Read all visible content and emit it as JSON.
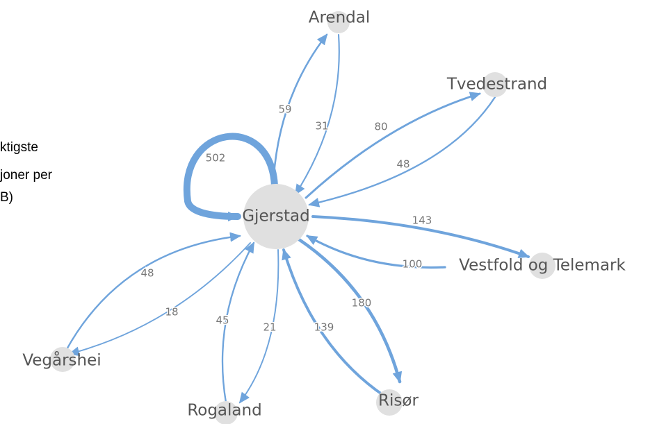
{
  "intro": [
    "ktigste",
    "joner per",
    "B)"
  ],
  "nodes": [
    {
      "label": "Gjerstad"
    },
    {
      "label": "Arendal"
    },
    {
      "label": "Tvedestrand"
    },
    {
      "label": "Vestfold og Telemark"
    },
    {
      "label": "Risør"
    },
    {
      "label": "Rogaland"
    },
    {
      "label": "Vegårshei"
    }
  ],
  "edges": [
    {
      "value": 59
    },
    {
      "value": 31
    },
    {
      "value": 80
    },
    {
      "value": 48
    },
    {
      "value": 502
    },
    {
      "value": 143
    },
    {
      "value": 100
    },
    {
      "value": 180
    },
    {
      "value": 139
    },
    {
      "value": 21
    },
    {
      "value": 45
    },
    {
      "value": 48
    },
    {
      "value": 18
    }
  ]
}
